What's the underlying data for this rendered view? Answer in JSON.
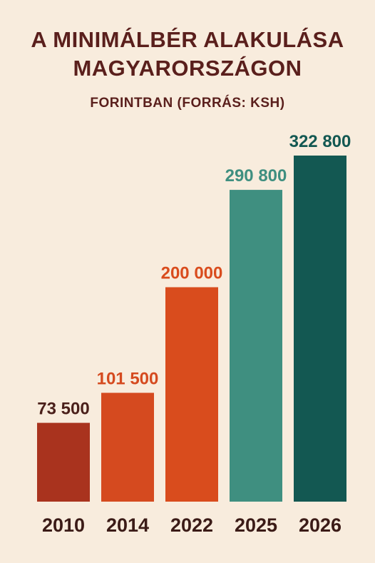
{
  "chart_data": {
    "type": "bar",
    "title": "A MINIMÁLBÉR ALAKULÁSA MAGYARORSZÁGON",
    "subtitle": "FORINTBAN (FORRÁS: KSH)",
    "categories": [
      "2010",
      "2014",
      "2022",
      "2025",
      "2026"
    ],
    "values": [
      73500,
      101500,
      200000,
      290800,
      322800
    ],
    "value_labels": [
      "73 500",
      "101 500",
      "200 000",
      "290 800",
      "322 800"
    ],
    "colors": [
      "#a9331e",
      "#d54a1f",
      "#d94c1d",
      "#3f8f80",
      "#135852"
    ]
  }
}
